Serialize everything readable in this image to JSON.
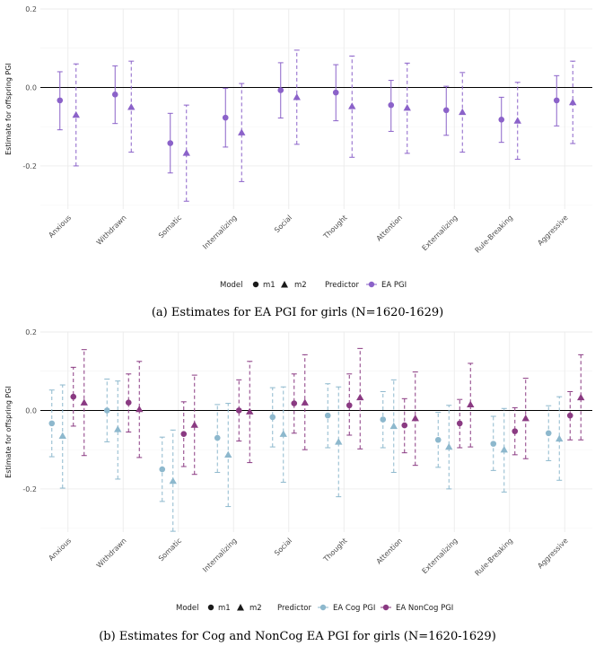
{
  "captions": [
    "(a) Estimates for EA PGI for girls (N=1620-1629)",
    "(b) Estimates for Cog and NonCog EA PGI for girls (N=1620-1629)"
  ],
  "legend_a": {
    "model_title": "Model",
    "m1_label": "m1",
    "m2_label": "m2",
    "predictor_title": "Predictor",
    "pred1": "EA PGI"
  },
  "legend_b": {
    "model_title": "Model",
    "m1_label": "m1",
    "m2_label": "m2",
    "predictor_title": "Predictor",
    "pred1": "EA Cog PGI",
    "pred2": "EA NonCog PGI"
  },
  "colors": {
    "ea": "#8b62c9",
    "cog": "#8db8cd",
    "noncog": "#8a3a82"
  },
  "chart_data": [
    {
      "type": "scatter",
      "subtype": "point-range",
      "title": "",
      "xlabel": "",
      "ylabel": "Estimate for offspring PGI",
      "ylim": [
        -0.31,
        0.2
      ],
      "yticks": [
        -0.2,
        0.0,
        0.2
      ],
      "ytick_labels": [
        "-0.2",
        "0.0",
        "0.2"
      ],
      "categories": [
        "Anxious",
        "Withdrawn",
        "Somatic",
        "Internalizing",
        "Social",
        "Thought",
        "Attention",
        "Externalizing",
        "Rule-Breaking",
        "Aggressive"
      ],
      "series": [
        {
          "name": "EA PGI m1",
          "predictor": "EA PGI",
          "model": "m1",
          "color": "#8b62c9",
          "values": [
            -0.033,
            -0.018,
            -0.142,
            -0.077,
            -0.007,
            -0.013,
            -0.045,
            -0.058,
            -0.082,
            -0.033
          ],
          "lower": [
            -0.108,
            -0.092,
            -0.218,
            -0.152,
            -0.078,
            -0.085,
            -0.112,
            -0.122,
            -0.14,
            -0.098
          ],
          "upper": [
            0.04,
            0.055,
            -0.066,
            -0.002,
            0.063,
            0.058,
            0.018,
            0.003,
            -0.025,
            0.03
          ]
        },
        {
          "name": "EA PGI m2",
          "predictor": "EA PGI",
          "model": "m2",
          "color": "#8b62c9",
          "values": [
            -0.07,
            -0.05,
            -0.167,
            -0.115,
            -0.025,
            -0.048,
            -0.052,
            -0.063,
            -0.085,
            -0.038
          ],
          "lower": [
            -0.2,
            -0.165,
            -0.29,
            -0.24,
            -0.145,
            -0.178,
            -0.168,
            -0.165,
            -0.183,
            -0.143
          ],
          "upper": [
            0.06,
            0.067,
            -0.045,
            0.01,
            0.095,
            0.08,
            0.062,
            0.038,
            0.013,
            0.067
          ]
        }
      ]
    },
    {
      "type": "scatter",
      "subtype": "point-range",
      "title": "",
      "xlabel": "",
      "ylabel": "Estimate for offspring PGI",
      "ylim": [
        -0.31,
        0.2
      ],
      "yticks": [
        -0.2,
        0.0,
        0.2
      ],
      "ytick_labels": [
        "-0.2",
        "0.0",
        "0.2"
      ],
      "categories": [
        "Anxious",
        "Withdrawn",
        "Somatic",
        "Internalizing",
        "Social",
        "Thought",
        "Attention",
        "Externalizing",
        "Rule-Breaking",
        "Aggressive"
      ],
      "series": [
        {
          "name": "EA Cog PGI m1",
          "predictor": "EA Cog PGI",
          "model": "m1",
          "color": "#8db8cd",
          "values": [
            -0.033,
            0.0,
            -0.15,
            -0.07,
            -0.017,
            -0.013,
            -0.023,
            -0.075,
            -0.085,
            -0.058
          ],
          "lower": [
            -0.118,
            -0.08,
            -0.232,
            -0.158,
            -0.093,
            -0.095,
            -0.095,
            -0.145,
            -0.153,
            -0.128
          ],
          "upper": [
            0.052,
            0.08,
            -0.068,
            0.015,
            0.058,
            0.068,
            0.048,
            -0.005,
            -0.015,
            0.012
          ]
        },
        {
          "name": "EA Cog PGI m2",
          "predictor": "EA Cog PGI",
          "model": "m2",
          "color": "#8db8cd",
          "values": [
            -0.065,
            -0.048,
            -0.18,
            -0.113,
            -0.06,
            -0.08,
            -0.04,
            -0.093,
            -0.1,
            -0.072
          ],
          "lower": [
            -0.198,
            -0.175,
            -0.308,
            -0.245,
            -0.183,
            -0.22,
            -0.158,
            -0.2,
            -0.208,
            -0.178
          ],
          "upper": [
            0.065,
            0.075,
            -0.05,
            0.018,
            0.06,
            0.06,
            0.078,
            0.013,
            0.005,
            0.035
          ]
        },
        {
          "name": "EA NonCog PGI m1",
          "predictor": "EA NonCog PGI",
          "model": "m1",
          "color": "#8a3a82",
          "values": [
            0.035,
            0.02,
            -0.06,
            0.0,
            0.018,
            0.013,
            -0.038,
            -0.033,
            -0.053,
            -0.013
          ],
          "lower": [
            -0.04,
            -0.055,
            -0.143,
            -0.078,
            -0.058,
            -0.063,
            -0.108,
            -0.095,
            -0.113,
            -0.075
          ],
          "upper": [
            0.11,
            0.093,
            0.022,
            0.078,
            0.093,
            0.093,
            0.03,
            0.028,
            0.007,
            0.048
          ]
        },
        {
          "name": "EA NonCog PGI m2",
          "predictor": "EA NonCog PGI",
          "model": "m2",
          "color": "#8a3a82",
          "values": [
            0.02,
            0.003,
            -0.037,
            -0.003,
            0.02,
            0.033,
            -0.02,
            0.015,
            -0.02,
            0.033
          ],
          "lower": [
            -0.115,
            -0.12,
            -0.163,
            -0.133,
            -0.1,
            -0.098,
            -0.14,
            -0.093,
            -0.123,
            -0.075
          ],
          "upper": [
            0.155,
            0.125,
            0.09,
            0.125,
            0.142,
            0.158,
            0.098,
            0.12,
            0.082,
            0.142
          ]
        }
      ]
    }
  ]
}
